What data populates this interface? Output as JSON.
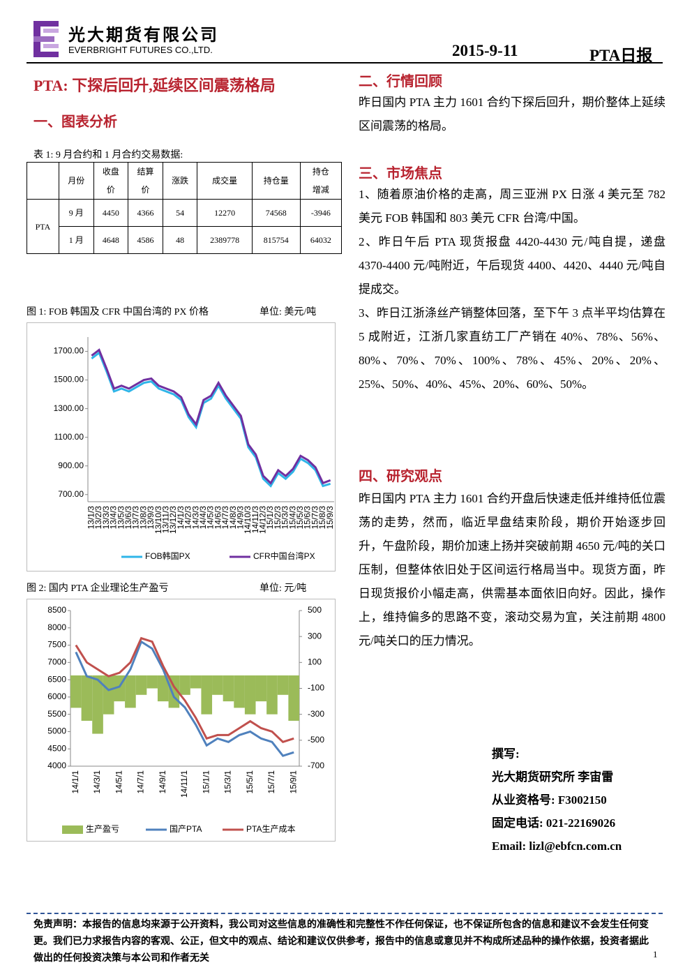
{
  "header": {
    "company_cn": "光大期货有限公司",
    "company_en": "EVERBRIGHT FUTURES CO.,LTD.",
    "date": "2015-9-11",
    "report": "PTA日报"
  },
  "title": "PTA: 下探后回升,延续区间震荡格局",
  "section1": "一、图表分析",
  "table": {
    "caption": "表 1: 9 月合约和 1 月合约交易数据:",
    "headers": [
      [
        "月份"
      ],
      [
        "收盘",
        "价"
      ],
      [
        "结算",
        "价"
      ],
      [
        "涨跌"
      ],
      [
        "成交量"
      ],
      [
        "持仓量"
      ],
      [
        "持仓",
        "增减"
      ]
    ],
    "product": "PTA",
    "rows": [
      [
        "9 月",
        "4450",
        "4366",
        "54",
        "12270",
        "74568",
        "-3946"
      ],
      [
        "1 月",
        "4648",
        "4586",
        "48",
        "2389778",
        "815754",
        "64032"
      ]
    ]
  },
  "chart_data": [
    {
      "type": "line",
      "title": "图 1: FOB 韩国及 CFR 中国台湾的 PX 价格",
      "unit": "单位: 美元/吨",
      "categories": [
        "13/1/3",
        "13/2/3",
        "13/3/3",
        "13/4/3",
        "13/5/3",
        "13/6/3",
        "13/7/3",
        "13/8/3",
        "13/9/3",
        "13/10/3",
        "13/11/3",
        "13/12/3",
        "14/1/3",
        "14/2/3",
        "14/3/3",
        "14/4/3",
        "14/5/3",
        "14/6/3",
        "14/7/3",
        "14/8/3",
        "14/9/3",
        "14/10/3",
        "14/11/3",
        "14/12/3",
        "15/1/3",
        "15/2/3",
        "15/3/3",
        "15/4/3",
        "15/5/3",
        "15/6/3",
        "15/7/3",
        "15/8/3",
        "15/9/3"
      ],
      "series": [
        {
          "name": "FOB韩国PX",
          "color": "#2fb5e8",
          "values": [
            1650,
            1690,
            1560,
            1420,
            1440,
            1420,
            1450,
            1480,
            1490,
            1440,
            1420,
            1400,
            1360,
            1240,
            1170,
            1340,
            1370,
            1460,
            1370,
            1300,
            1230,
            1030,
            960,
            810,
            760,
            850,
            810,
            860,
            950,
            920,
            870,
            760,
            775
          ]
        },
        {
          "name": "CFR中国台湾PX",
          "color": "#7030a0",
          "values": [
            1670,
            1710,
            1580,
            1440,
            1460,
            1440,
            1470,
            1500,
            1510,
            1460,
            1440,
            1420,
            1380,
            1260,
            1190,
            1360,
            1390,
            1480,
            1390,
            1320,
            1250,
            1050,
            980,
            830,
            780,
            870,
            830,
            880,
            970,
            940,
            890,
            780,
            800
          ]
        }
      ],
      "ylim": [
        650,
        1800
      ],
      "yticks": [
        {
          "value": 700,
          "label": "700.00"
        },
        {
          "value": 900,
          "label": "900.00"
        },
        {
          "value": 1100,
          "label": "1100.00"
        },
        {
          "value": 1300,
          "label": "1300.00"
        },
        {
          "value": 1500,
          "label": "1500.00"
        },
        {
          "value": 1700,
          "label": "1700.00"
        }
      ],
      "grid": false
    },
    {
      "type": "line",
      "title": "图 2: 国内 PTA 企业理论生产盈亏",
      "unit": "单位: 元/吨",
      "categories": [
        "14/1/1",
        null,
        "14/3/1",
        null,
        "14/5/1",
        null,
        "14/7/1",
        null,
        "14/9/1",
        null,
        "14/11/1",
        null,
        "15/1/1",
        null,
        "15/3/1",
        null,
        "15/5/1",
        null,
        "15/7/1",
        null,
        "15/9/1"
      ],
      "series": [
        {
          "name": "生产盈亏",
          "color": "#9bbb59",
          "type": "bar",
          "axis": "y2",
          "values": [
            -250,
            -350,
            -450,
            -300,
            -200,
            -250,
            -150,
            -100,
            -200,
            -250,
            -150,
            -100,
            -300,
            -150,
            -200,
            -250,
            -300,
            -200,
            -300,
            -150,
            -350
          ]
        },
        {
          "name": "国产PTA",
          "color": "#4f81bd",
          "values": [
            7300,
            6600,
            6500,
            6200,
            6300,
            6800,
            7600,
            7400,
            6800,
            6000,
            5700,
            5200,
            4600,
            4800,
            4700,
            4900,
            5000,
            4800,
            4700,
            4300,
            4400
          ]
        },
        {
          "name": "PTA生产成本",
          "color": "#c0504d",
          "values": [
            7500,
            7000,
            6800,
            6600,
            6700,
            7000,
            7700,
            7600,
            6900,
            6300,
            5900,
            5400,
            4800,
            4900,
            4900,
            5100,
            5300,
            5100,
            5000,
            4700,
            4800
          ]
        }
      ],
      "ylim": [
        4000,
        8500
      ],
      "yticks": [
        4000,
        4500,
        5000,
        5500,
        6000,
        6500,
        7000,
        7500,
        8000,
        8500
      ],
      "y2lim": [
        -700,
        500
      ],
      "y2ticks": [
        -700,
        -500,
        -300,
        -100,
        100,
        300,
        500
      ],
      "grid": false
    }
  ],
  "section2": {
    "heading": "二、行情回顾",
    "text": "昨日国内 PTA 主力 1601 合约下探后回升，期价整体上延续区间震荡的格局。"
  },
  "section3": {
    "heading": "三、市场焦点",
    "items": [
      "1、随着原油价格的走高，周三亚洲 PX 日涨 4 美元至 782 美元 FOB 韩国和 803 美元 CFR 台湾/中国。",
      "2、昨日午后 PTA 现货报盘 4420-4430 元/吨自提，递盘 4370-4400 元/吨附近，午后现货 4400、4420、4440 元/吨自提成交。",
      "3、昨日江浙涤丝产销整体回落，至下午 3 点半平均估算在 5 成附近，江浙几家直纺工厂产销在 40%、78%、56%、80%、70%、70%、100%、78%、45%、20%、20%、25%、50%、40%、45%、20%、60%、50%。"
    ]
  },
  "section4": {
    "heading": "四、研究观点",
    "text": "昨日国内 PTA 主力 1601 合约开盘后快速走低并维持低位震荡的走势，然而，临近早盘结束阶段，期价开始逐步回升，午盘阶段，期价加速上扬并突破前期 4650 元/吨的关口压制，但整体依旧处于区间运行格局当中。现货方面，昨日现货报价小幅走高，供需基本面依旧向好。因此，操作上，维持偏多的思路不变，滚动交易为宜，关注前期 4800 元/吨关口的压力情况。"
  },
  "author": [
    "撰写:",
    "光大期货研究所 李宙雷",
    "从业资格号: F3002150",
    "固定电话: 021-22169026",
    "Email: lizl@ebfcn.com.cn"
  ],
  "footer": {
    "disclaimer": "免责声明：本报告的信息均来源于公开资料，我公司对这些信息的准确性和完整性不作任何保证，也不保证所包含的信息和建议不会发生任何变更。我们已力求报告内容的客观、公正，但文中的观点、结论和建议仅供参考，报告中的信息或意见并不构成所述品种的操作依据，投资者据此做出的任何投资决策与本公司和作者无关",
    "page": "1"
  }
}
